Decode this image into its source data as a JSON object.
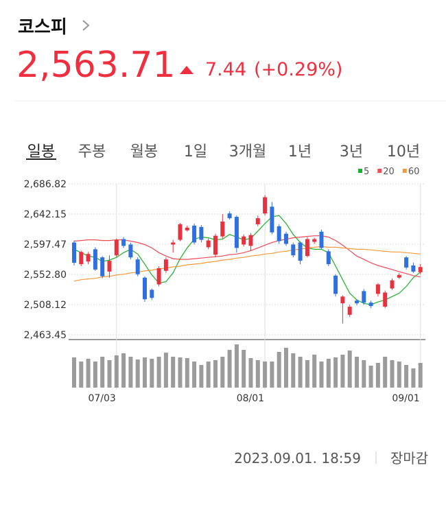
{
  "header": {
    "title": "코스피",
    "price": "2,563.71",
    "change": "7.44",
    "change_rate": "(+0.29%)"
  },
  "tabs": [
    "일봉",
    "주봉",
    "월봉",
    "1일",
    "3개월",
    "1년",
    "3년",
    "10년"
  ],
  "chart_data": {
    "type": "candlestick",
    "categories": [
      null,
      null,
      null,
      null,
      null,
      null,
      "07/03",
      null,
      null,
      null,
      null,
      null,
      null,
      null,
      null,
      null,
      null,
      null,
      null,
      null,
      null,
      null,
      null,
      null,
      null,
      null,
      null,
      "08/01",
      null,
      null,
      null,
      null,
      null,
      null,
      null,
      null,
      null,
      null,
      null,
      null,
      null,
      null,
      null,
      null,
      null,
      null,
      null,
      null,
      null,
      "09/01"
    ],
    "open": [
      2600,
      2568,
      2572,
      2590,
      2578,
      2557,
      2581,
      2605,
      2597,
      2575,
      2548,
      2530,
      2538,
      2558,
      2597,
      2604,
      2618,
      2625,
      2623,
      2593,
      2582,
      2609,
      2643,
      2638,
      2597,
      2595,
      2627,
      2643,
      2653,
      2624,
      2613,
      2597,
      2600,
      2580,
      2601,
      2616,
      2587,
      2551,
      2510,
      2493,
      2514,
      2528,
      2511,
      2524,
      2505,
      2532,
      2548,
      2578,
      2566,
      2556
    ],
    "high": [
      2603,
      2588,
      2586,
      2593,
      2580,
      2581,
      2606,
      2608,
      2600,
      2578,
      2550,
      2532,
      2565,
      2578,
      2604,
      2629,
      2625,
      2628,
      2626,
      2606,
      2613,
      2642,
      2646,
      2640,
      2612,
      2614,
      2640,
      2670,
      2660,
      2627,
      2616,
      2600,
      2602,
      2608,
      2607,
      2619,
      2590,
      2553,
      2522,
      2508,
      2516,
      2531,
      2514,
      2540,
      2529,
      2547,
      2555,
      2580,
      2570,
      2568
    ],
    "low": [
      2566,
      2565,
      2568,
      2558,
      2547,
      2548,
      2578,
      2592,
      2575,
      2550,
      2512,
      2515,
      2535,
      2555,
      2585,
      2602,
      2616,
      2597,
      2600,
      2590,
      2578,
      2606,
      2634,
      2585,
      2594,
      2588,
      2624,
      2640,
      2612,
      2598,
      2595,
      2578,
      2568,
      2578,
      2598,
      2590,
      2565,
      2520,
      2480,
      2490,
      2507,
      2508,
      2503,
      2520,
      2503,
      2530,
      2546,
      2560,
      2555,
      2553
    ],
    "close": [
      2570,
      2586,
      2583,
      2560,
      2550,
      2573,
      2604,
      2595,
      2578,
      2553,
      2516,
      2518,
      2562,
      2575,
      2600,
      2627,
      2622,
      2600,
      2604,
      2603,
      2610,
      2631,
      2636,
      2592,
      2609,
      2611,
      2636,
      2667,
      2615,
      2602,
      2598,
      2581,
      2573,
      2605,
      2605,
      2592,
      2568,
      2524,
      2520,
      2505,
      2510,
      2511,
      2506,
      2538,
      2526,
      2544,
      2552,
      2563,
      2557,
      2563.71
    ],
    "up_color": "#e8313f",
    "down_color": "#2f6fde",
    "series": [
      {
        "name": "5",
        "color": "#1bb02c",
        "values": [
          2590,
          2585,
          2580,
          2578,
          2572,
          2574,
          2578,
          2585,
          2590,
          2583,
          2568,
          2552,
          2540,
          2542,
          2555,
          2576,
          2592,
          2605,
          2608,
          2607,
          2604,
          2605,
          2612,
          2608,
          2604,
          2606,
          2617,
          2628,
          2638,
          2640,
          2628,
          2612,
          2600,
          2592,
          2590,
          2590,
          2585,
          2565,
          2545,
          2525,
          2515,
          2510,
          2508,
          2512,
          2515,
          2520,
          2525,
          2535,
          2548,
          2556
        ]
      },
      {
        "name": "20",
        "color": "#ef4a55",
        "values": [
          2602,
          2603,
          2604,
          2604,
          2603,
          2603,
          2604,
          2604,
          2602,
          2600,
          2597,
          2592,
          2585,
          2580,
          2576,
          2575,
          2575,
          2576,
          2577,
          2578,
          2579,
          2580,
          2582,
          2583,
          2585,
          2588,
          2592,
          2596,
          2600,
          2603,
          2605,
          2607,
          2608,
          2609,
          2610,
          2610,
          2608,
          2603,
          2596,
          2588,
          2580,
          2575,
          2570,
          2566,
          2563,
          2560,
          2557,
          2554,
          2551,
          2549
        ]
      },
      {
        "name": "60",
        "color": "#f39a3a",
        "values": [
          2543,
          2545,
          2546,
          2547,
          2549,
          2550,
          2552,
          2553,
          2555,
          2556,
          2558,
          2559,
          2561,
          2562,
          2564,
          2565,
          2567,
          2568,
          2569,
          2571,
          2572,
          2574,
          2575,
          2577,
          2578,
          2580,
          2581,
          2583,
          2584,
          2586,
          2587,
          2589,
          2590,
          2592,
          2593,
          2594,
          2593,
          2593,
          2592,
          2591,
          2590,
          2590,
          2589,
          2588,
          2587,
          2586,
          2586,
          2585,
          2584,
          2583
        ]
      }
    ],
    "ylim": [
      2463.45,
      2686.82
    ],
    "yticks": [
      {
        "value": 2463.45,
        "label": "2,463.45"
      },
      {
        "value": 2508.12,
        "label": "2,508.12"
      },
      {
        "value": 2552.8,
        "label": "2,552.80"
      },
      {
        "value": 2597.47,
        "label": "2,597.47"
      },
      {
        "value": 2642.15,
        "label": "2,642.15"
      },
      {
        "value": 2686.82,
        "label": "2,686.82"
      }
    ],
    "grid": true,
    "volume": {
      "color": "#9b9b9b",
      "ylim": [
        0,
        65
      ],
      "values": [
        44,
        38,
        42,
        38,
        45,
        40,
        47,
        50,
        45,
        41,
        44,
        42,
        45,
        51,
        45,
        44,
        43,
        38,
        33,
        38,
        40,
        45,
        55,
        63,
        55,
        43,
        40,
        38,
        38,
        52,
        58,
        50,
        45,
        40,
        48,
        38,
        42,
        44,
        48,
        54,
        45,
        40,
        32,
        36,
        45,
        40,
        38,
        33,
        28,
        36
      ]
    }
  },
  "footer": {
    "datetime": "2023.09.01. 18:59",
    "status": "장마감"
  }
}
